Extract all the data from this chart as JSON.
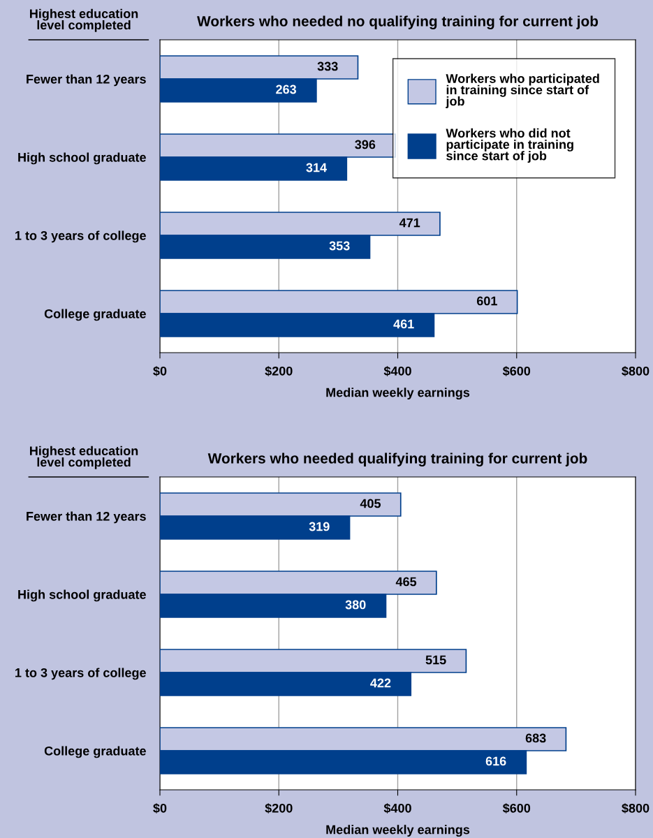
{
  "chart_data": [
    {
      "type": "bar",
      "orientation": "horizontal",
      "title": "Workers who needed no qualifying training for current job",
      "xlabel": "Median weekly earnings",
      "annotations": [
        "Highest education\nlevel completed"
      ],
      "categories": [
        "Fewer than 12 years",
        "High school graduate",
        "1 to 3 years of college",
        "College graduate"
      ],
      "series": [
        {
          "name": "Workers who participated\nin training since start of\njob",
          "color": "#c4c8e4",
          "values": [
            333,
            396,
            471,
            601
          ]
        },
        {
          "name": "Workers who did not\nparticipate in training\nsince start of job",
          "color": "#003f8c",
          "values": [
            263,
            314,
            353,
            461
          ]
        }
      ],
      "xlim": [
        0,
        800
      ],
      "xticks": [
        {
          "value": 0,
          "label": "$0"
        },
        {
          "value": 200,
          "label": "$200"
        },
        {
          "value": 400,
          "label": "$400"
        },
        {
          "value": 600,
          "label": "$600"
        },
        {
          "value": 800,
          "label": "$800"
        }
      ],
      "grid": "x",
      "legend": "top right",
      "data_labels": true
    },
    {
      "type": "bar",
      "orientation": "horizontal",
      "title": "Workers who needed qualifying training for current job",
      "xlabel": "Median weekly earnings",
      "annotations": [
        "Highest education\nlevel completed"
      ],
      "categories": [
        "Fewer than 12 years",
        "High school graduate",
        "1 to 3 years of college",
        "College graduate"
      ],
      "series": [
        {
          "color": "#c4c8e4",
          "values": [
            405,
            465,
            515,
            683
          ]
        },
        {
          "color": "#003f8c",
          "values": [
            319,
            380,
            422,
            616
          ]
        }
      ],
      "xlim": [
        0,
        800
      ],
      "xticks": [
        {
          "value": 0,
          "label": "$0"
        },
        {
          "value": 200,
          "label": "$200"
        },
        {
          "value": 400,
          "label": "$400"
        },
        {
          "value": 600,
          "label": "$600"
        },
        {
          "value": 800,
          "label": "$800"
        }
      ],
      "grid": "x",
      "data_labels": true
    }
  ]
}
